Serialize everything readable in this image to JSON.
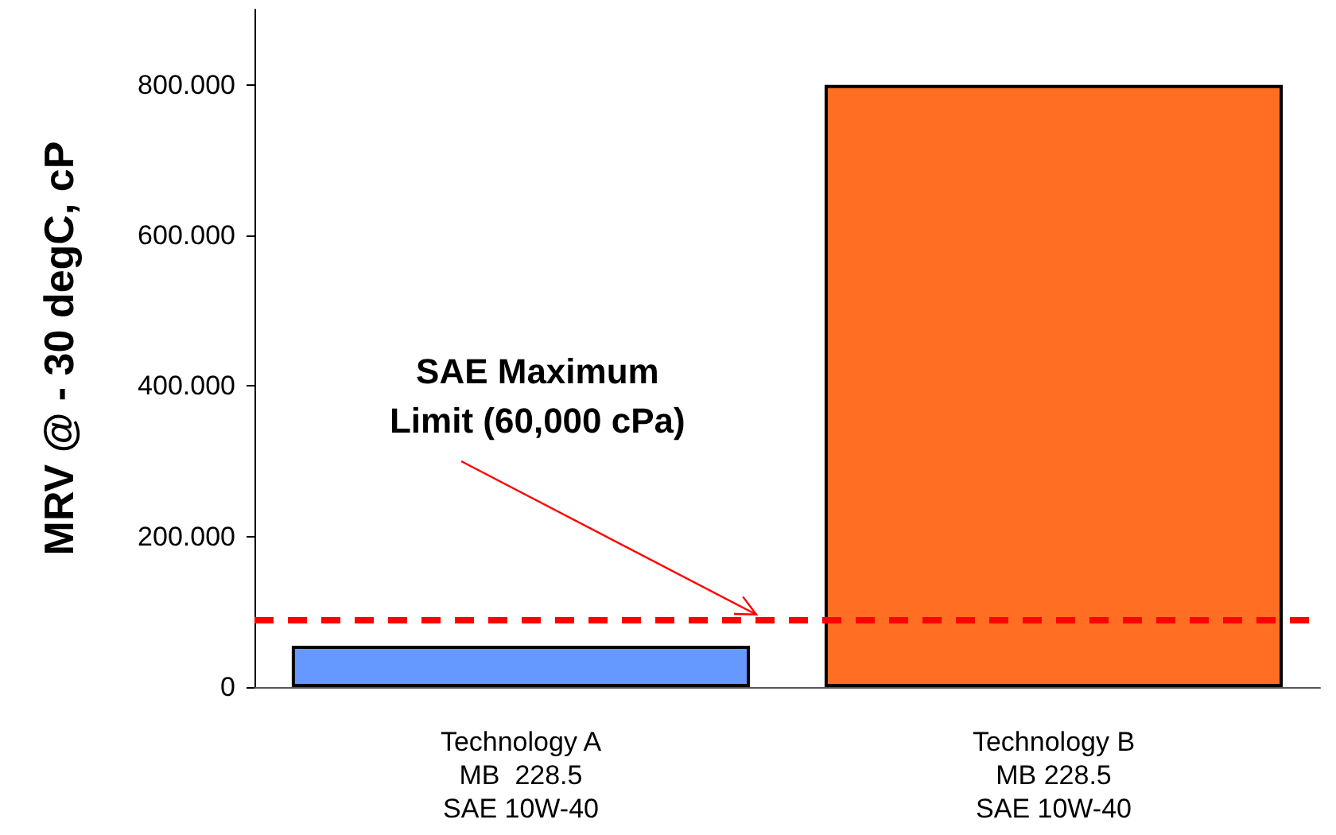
{
  "chart_data": {
    "type": "bar",
    "ylabel": "MRV @ - 30 degC, cP",
    "categories": [
      "Technology A\nMB  228.5\nSAE 10W-40",
      "Technology B\nMB 228.5\nSAE 10W-40"
    ],
    "values": [
      55,
      800
    ],
    "colors": [
      "#6699ff",
      "#ff6e22"
    ],
    "ylim": [
      0,
      900
    ],
    "yticks": [
      0,
      {
        "value": 200,
        "label": "200.000"
      },
      {
        "value": 400,
        "label": "400.000"
      },
      {
        "value": 600,
        "label": "600.000"
      },
      {
        "value": 800,
        "label": "800.000"
      }
    ],
    "ref_lines": [
      {
        "axis": "y",
        "value": 90,
        "label": "SAE Maximum\nLimit (60,000 cPa)",
        "color": "#ff0000",
        "line_style": "dashed"
      }
    ],
    "grid": false
  }
}
